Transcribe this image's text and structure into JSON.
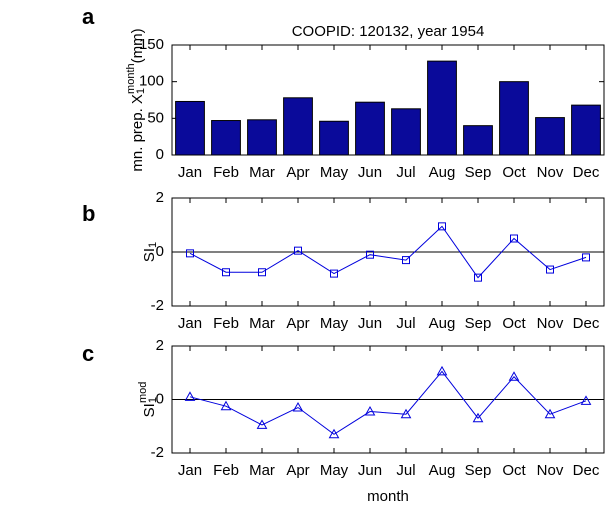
{
  "chart_data": [
    {
      "type": "bar",
      "panel_label": "a",
      "title": "COOPID: 120132, year 1954",
      "ylabel": {
        "text": "mn. prep. X",
        "sub": "1",
        "sup": "month",
        "unit": "(mm)"
      },
      "categories": [
        "Jan",
        "Feb",
        "Mar",
        "Apr",
        "May",
        "Jun",
        "Jul",
        "Aug",
        "Sep",
        "Oct",
        "Nov",
        "Dec"
      ],
      "values": [
        73,
        47,
        48,
        78,
        46,
        72,
        63,
        128,
        40,
        100,
        51,
        68
      ],
      "color": "#0a0a9a",
      "ylim": [
        0,
        150
      ],
      "yticks": [
        0,
        50,
        100,
        150
      ]
    },
    {
      "type": "line",
      "panel_label": "b",
      "ylabel": {
        "text": "SI",
        "sub": "1"
      },
      "categories": [
        "Jan",
        "Feb",
        "Mar",
        "Apr",
        "May",
        "Jun",
        "Jul",
        "Aug",
        "Sep",
        "Oct",
        "Nov",
        "Dec"
      ],
      "values": [
        -0.05,
        -0.75,
        -0.75,
        0.05,
        -0.8,
        -0.1,
        -0.3,
        0.95,
        -0.95,
        0.5,
        -0.65,
        -0.2
      ],
      "color": "#0000dd",
      "marker": "square",
      "ylim": [
        -2,
        2
      ],
      "yticks": [
        -2,
        0,
        2
      ],
      "hline": 0
    },
    {
      "type": "line",
      "panel_label": "c",
      "ylabel": {
        "text": "SI",
        "sub": "1",
        "sup": "mod"
      },
      "xlabel": "month",
      "categories": [
        "Jan",
        "Feb",
        "Mar",
        "Apr",
        "May",
        "Jun",
        "Jul",
        "Aug",
        "Sep",
        "Oct",
        "Nov",
        "Dec"
      ],
      "values": [
        0.1,
        -0.25,
        -0.95,
        -0.3,
        -1.3,
        -0.45,
        -0.55,
        1.05,
        -0.7,
        0.85,
        -0.55,
        -0.05
      ],
      "color": "#0000dd",
      "marker": "triangle",
      "ylim": [
        -2,
        2
      ],
      "yticks": [
        -2,
        0,
        2
      ],
      "hline": 0
    }
  ]
}
